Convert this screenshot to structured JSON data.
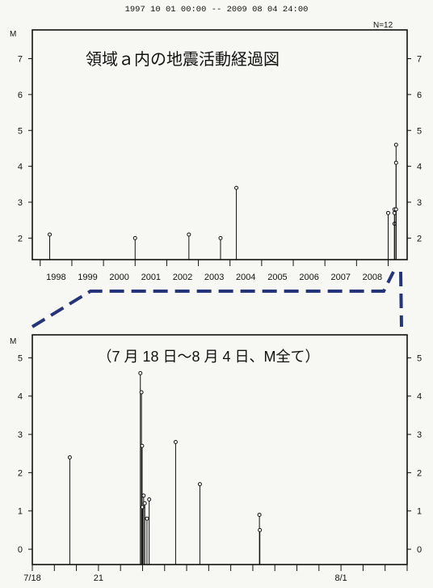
{
  "header": "1997 10 01 00:00 -- 2009 08 04 24:00",
  "chart_data": [
    {
      "type": "scatter",
      "title": "領域ａ内の地震活動経過図",
      "ylabel": "M",
      "count_label": "N=12",
      "xlim": [
        1997.75,
        2009.6
      ],
      "ylim": [
        1.4,
        7.8
      ],
      "y_ticks": [
        2,
        3,
        4,
        5,
        6,
        7
      ],
      "x_tick_labels": [
        "1998",
        "1999",
        "2000",
        "2001",
        "2002",
        "2003",
        "2004",
        "2005",
        "2006",
        "2007",
        "2008"
      ],
      "x": [
        1998.3,
        2001.0,
        2002.7,
        2003.7,
        2004.2,
        2009.0,
        2009.2,
        2009.2,
        2009.2,
        2009.25,
        2009.25,
        2009.25
      ],
      "y": [
        2.1,
        2.0,
        2.1,
        2.0,
        3.4,
        2.7,
        2.4,
        2.8,
        2.7,
        4.6,
        4.1,
        2.8
      ],
      "grid": false
    },
    {
      "type": "scatter",
      "title": "（7 月 18 日～8 月 4 日、M全て）",
      "ylabel": "M",
      "xlim": [
        18,
        35
      ],
      "ylim": [
        -0.4,
        5.6
      ],
      "y_ticks": [
        0,
        1,
        2,
        3,
        4,
        5
      ],
      "x_tick_labels": [
        "7/18",
        "21",
        "8/1"
      ],
      "x": [
        19.7,
        22.9,
        22.95,
        22.98,
        23.0,
        23.05,
        23.1,
        23.2,
        23.3,
        24.5,
        25.6,
        28.3,
        28.32
      ],
      "y": [
        2.4,
        4.6,
        4.1,
        2.7,
        1.1,
        1.4,
        1.2,
        0.8,
        1.3,
        2.8,
        1.7,
        0.9,
        0.5
      ],
      "grid": false
    }
  ]
}
